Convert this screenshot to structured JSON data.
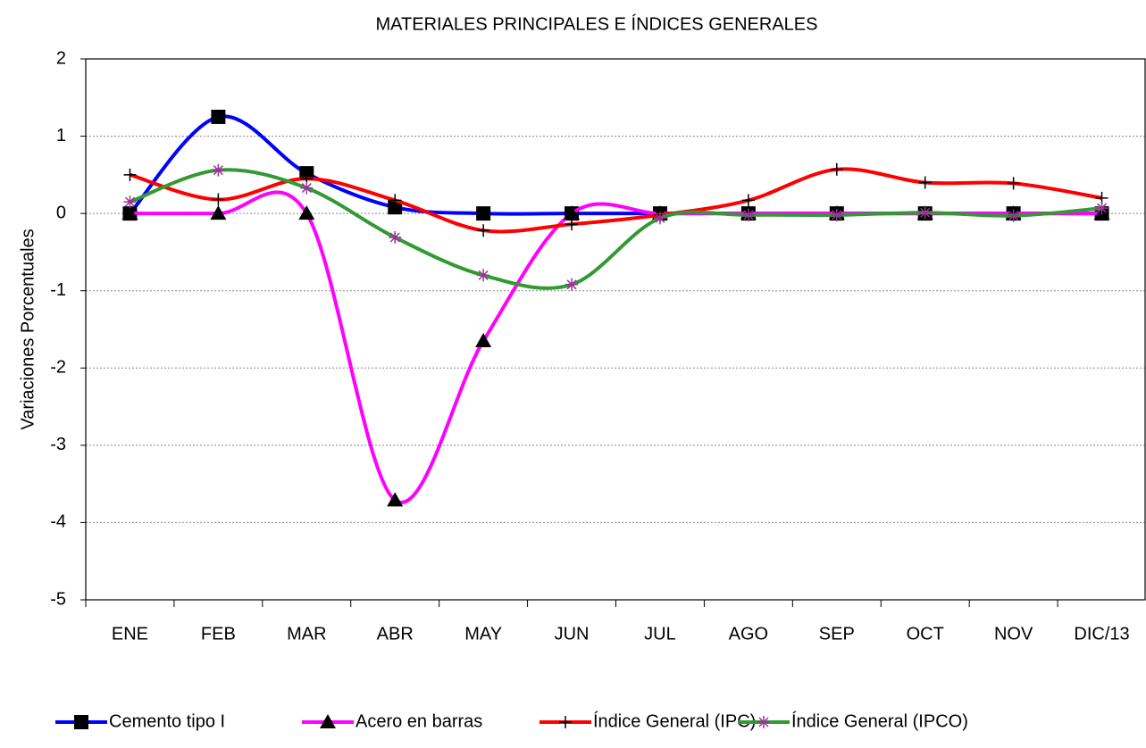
{
  "chart_data": {
    "type": "line",
    "title": "MATERIALES PRINCIPALES E ÍNDICES GENERALES",
    "y_label": "Variaciones Porcentuales",
    "categories": [
      "ENE",
      "FEB",
      "MAR",
      "ABR",
      "MAY",
      "JUN",
      "JUL",
      "AGO",
      "SEP",
      "OCT",
      "NOV",
      "DIC/13"
    ],
    "series": [
      {
        "name": "Cemento tipo I",
        "color": "#0000ff",
        "marker": "square",
        "values": [
          0,
          1.25,
          0.52,
          0.08,
          0,
          0,
          0,
          0,
          0,
          0,
          0,
          0
        ]
      },
      {
        "name": "Acero en barras",
        "color": "#ff00ff",
        "marker": "triangle",
        "values": [
          0,
          0,
          0,
          -3.71,
          -1.65,
          0,
          0,
          0,
          0,
          0,
          0,
          0
        ]
      },
      {
        "name": "Índice General (IPC)",
        "color": "#ff0000",
        "marker": "plus",
        "values": [
          0.5,
          0.18,
          0.45,
          0.17,
          -0.22,
          -0.14,
          -0.02,
          0.17,
          0.57,
          0.4,
          0.39,
          0.2
        ]
      },
      {
        "name": "Índice General (IPCO)",
        "color": "#339933",
        "marker": "asterisk",
        "values": [
          0.15,
          0.56,
          0.33,
          -0.31,
          -0.8,
          -0.92,
          -0.06,
          -0.02,
          -0.02,
          0.01,
          -0.03,
          0.07
        ]
      }
    ],
    "ylim": [
      -5,
      2
    ],
    "yticks": [
      -5,
      -4,
      -3,
      -2,
      -1,
      0,
      1,
      2
    ],
    "grid": true,
    "smooth": true,
    "legend": "bottom"
  }
}
